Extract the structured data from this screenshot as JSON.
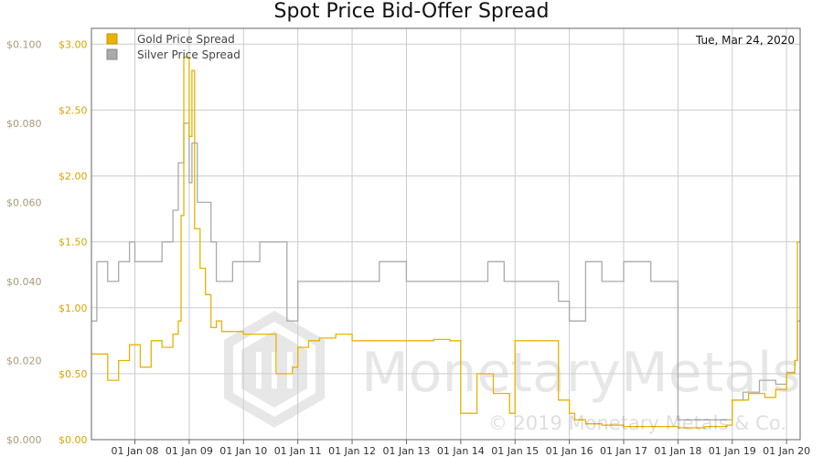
{
  "chart_data": {
    "type": "line",
    "title": "Spot Price Bid-Offer Spread",
    "date_label": "Tue, Mar 24, 2020",
    "watermark_brand": "MonetaryMetals",
    "copyright": "© 2019 Monetary Metals & Co.",
    "left_axis": {
      "ticks": [
        0.0,
        0.02,
        0.04,
        0.06,
        0.08,
        0.1
      ],
      "tick_labels": [
        "$0.000",
        "$0.020",
        "$0.040",
        "$0.060",
        "$0.080",
        "$0.100"
      ],
      "ylim": [
        0,
        0.104
      ]
    },
    "right_axis": {
      "ticks": [
        0.0,
        0.5,
        1.0,
        1.5,
        2.0,
        2.5,
        3.0
      ],
      "tick_labels": [
        "$0.00",
        "$0.50",
        "$1.00",
        "$1.50",
        "$2.00",
        "$2.50",
        "$3.00"
      ],
      "ylim": [
        0,
        3.12
      ]
    },
    "xlim": [
      2007.2,
      2020.25
    ],
    "x_ticks": [
      2008,
      2009,
      2010,
      2011,
      2012,
      2013,
      2014,
      2015,
      2016,
      2017,
      2018,
      2019,
      2020
    ],
    "x_tick_labels": [
      "01 Jan 08",
      "01 Jan 09",
      "01 Jan 10",
      "01 Jan 11",
      "01 Jan 12",
      "01 Jan 13",
      "01 Jan 14",
      "01 Jan 15",
      "01 Jan 16",
      "01 Jan 17",
      "01 Jan 18",
      "01 Jan 19",
      "01 Jan 20"
    ],
    "grid": true,
    "legend_position": "top-left",
    "series": [
      {
        "name": "Gold Price Spread",
        "axis": "right",
        "color": "#e8b300",
        "x": [
          2007.2,
          2007.5,
          2007.7,
          2007.9,
          2008.1,
          2008.3,
          2008.5,
          2008.7,
          2008.8,
          2008.85,
          2008.9,
          2009.0,
          2009.05,
          2009.1,
          2009.2,
          2009.3,
          2009.4,
          2009.5,
          2009.6,
          2009.8,
          2010.0,
          2010.5,
          2010.6,
          2010.9,
          2011.0,
          2011.2,
          2011.4,
          2011.7,
          2012.0,
          2012.5,
          2013.0,
          2013.5,
          2013.8,
          2013.9,
          2014.0,
          2014.3,
          2014.6,
          2014.9,
          2015.0,
          2015.3,
          2015.6,
          2015.8,
          2016.0,
          2016.1,
          2016.3,
          2016.6,
          2016.9,
          2017.0,
          2017.5,
          2018.0,
          2018.5,
          2018.9,
          2019.0,
          2019.3,
          2019.6,
          2019.8,
          2020.0,
          2020.15,
          2020.2
        ],
        "values": [
          0.65,
          0.45,
          0.6,
          0.72,
          0.55,
          0.75,
          0.7,
          0.8,
          0.9,
          1.7,
          2.9,
          2.3,
          2.8,
          1.6,
          1.3,
          1.1,
          0.85,
          0.9,
          0.82,
          0.82,
          0.8,
          0.8,
          0.5,
          0.55,
          0.7,
          0.75,
          0.77,
          0.8,
          0.75,
          0.75,
          0.75,
          0.76,
          0.75,
          0.75,
          0.2,
          0.5,
          0.35,
          0.2,
          0.75,
          0.75,
          0.75,
          0.3,
          0.2,
          0.15,
          0.12,
          0.11,
          0.11,
          0.1,
          0.1,
          0.09,
          0.1,
          0.11,
          0.3,
          0.35,
          0.32,
          0.38,
          0.5,
          0.6,
          1.5
        ]
      },
      {
        "name": "Silver Price Spread",
        "axis": "left",
        "color": "#aaaaaa",
        "x": [
          2007.2,
          2007.3,
          2007.5,
          2007.7,
          2007.9,
          2008.0,
          2008.2,
          2008.5,
          2008.7,
          2008.8,
          2008.9,
          2009.0,
          2009.05,
          2009.15,
          2009.4,
          2009.5,
          2009.8,
          2010.0,
          2010.3,
          2010.6,
          2010.8,
          2011.0,
          2011.5,
          2012.0,
          2012.5,
          2013.0,
          2013.5,
          2013.8,
          2014.0,
          2014.5,
          2014.8,
          2015.0,
          2015.5,
          2015.8,
          2016.0,
          2016.3,
          2016.6,
          2017.0,
          2017.5,
          2017.9,
          2018.0,
          2018.5,
          2019.0,
          2019.2,
          2019.5,
          2019.8,
          2020.0,
          2020.15,
          2020.2
        ],
        "values": [
          0.03,
          0.045,
          0.04,
          0.045,
          0.05,
          0.045,
          0.045,
          0.05,
          0.058,
          0.07,
          0.08,
          0.065,
          0.075,
          0.06,
          0.05,
          0.04,
          0.045,
          0.045,
          0.05,
          0.05,
          0.03,
          0.04,
          0.04,
          0.04,
          0.045,
          0.04,
          0.04,
          0.04,
          0.04,
          0.045,
          0.04,
          0.04,
          0.04,
          0.035,
          0.03,
          0.045,
          0.04,
          0.045,
          0.04,
          0.04,
          0.005,
          0.005,
          0.01,
          0.012,
          0.015,
          0.014,
          0.017,
          0.02,
          0.03
        ]
      }
    ]
  }
}
